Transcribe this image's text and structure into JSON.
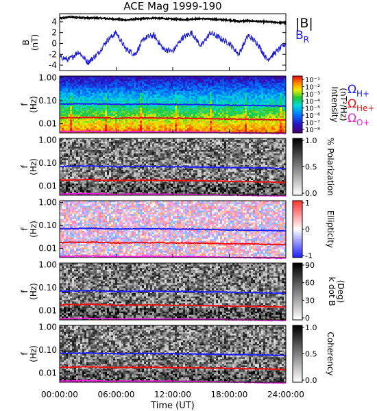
{
  "title": "ACE Mag 1999-190",
  "xaxis": {
    "label": "Time (UT)",
    "ticks": [
      "00:00:00",
      "06:00:00",
      "12:00:00",
      "18:00:00",
      "24:00:00"
    ]
  },
  "colors": {
    "B_total": "#000000",
    "B_R": "#1a1ad8",
    "H_plus": "#2020ff",
    "He_plus": "#ee1111",
    "O_plus": "#ee22dd"
  },
  "chart_data": [
    {
      "type": "line",
      "panel": "magnetic-field",
      "ylabel": "B (nT)",
      "ylabel_line1": "B",
      "ylabel_line2": "(nT)",
      "yticks": [
        "4",
        "2",
        "0",
        "-2",
        "-4"
      ],
      "ylim": [
        -5,
        5.5
      ],
      "xlim_hours": [
        0,
        24
      ],
      "series": [
        {
          "name": "|B|",
          "x_hours": [
            0,
            1,
            2,
            3,
            4,
            5,
            6,
            7,
            8,
            9,
            10,
            11,
            12,
            13,
            14,
            15,
            16,
            17,
            18,
            19,
            20,
            21,
            22,
            23,
            24
          ],
          "values": [
            4.6,
            4.9,
            4.8,
            4.7,
            4.7,
            4.6,
            4.5,
            4.3,
            4.5,
            4.6,
            4.7,
            4.6,
            4.5,
            4.4,
            4.5,
            4.6,
            4.5,
            4.4,
            4.3,
            4.1,
            4.2,
            4.1,
            4.0,
            3.9,
            3.8
          ]
        },
        {
          "name": "B",
          "name_sub": "R",
          "x_hours": [
            0,
            1,
            2,
            3,
            4,
            5,
            6,
            7,
            8,
            9,
            10,
            11,
            12,
            13,
            14,
            15,
            16,
            17,
            18,
            19,
            20,
            21,
            22,
            23,
            24
          ],
          "values": [
            -2.5,
            -3.0,
            -1.5,
            -3.5,
            -2.0,
            0.5,
            2.0,
            -1.0,
            -2.0,
            1.0,
            1.5,
            -1.0,
            -1.5,
            1.0,
            2.0,
            -0.5,
            2.0,
            1.0,
            0.0,
            -2.0,
            1.5,
            0.0,
            -3.0,
            -1.5,
            0.0
          ]
        }
      ]
    },
    {
      "type": "heatmap",
      "panel": "power-spectrum",
      "ylabel_line1": "f",
      "ylabel_line2": "(Hz)",
      "yticks": [
        "1.00",
        "0.10",
        "0.01"
      ],
      "ylim_hz": [
        0.004,
        1.2
      ],
      "colorbar": {
        "label_line1": "Intensity",
        "label_line2": "(nT²/Hz)",
        "ticks": [
          "10⁻¹",
          "10⁻²",
          "10⁻³",
          "10⁻⁴",
          "10⁻⁵",
          "10⁻⁶",
          "10⁻⁷",
          "10⁻⁸"
        ],
        "range_log10": [
          -8.5,
          -0.5
        ]
      },
      "gyro_legend": [
        {
          "symbol": "Ω",
          "sub": "H+",
          "color": "#2020ff"
        },
        {
          "symbol": "Ω",
          "sub": "He+",
          "color": "#ee1111"
        },
        {
          "symbol": "Ω",
          "sub": "O+",
          "color": "#ee22dd"
        }
      ]
    },
    {
      "type": "heatmap",
      "panel": "polarization",
      "ylabel_line1": "f",
      "ylabel_line2": "(Hz)",
      "yticks": [
        "1.00",
        "0.10",
        "0.01"
      ],
      "colorbar": {
        "label": "% Polarization",
        "ticks": [
          "1.0",
          "0.5",
          "0.0"
        ],
        "range": [
          0,
          1
        ]
      }
    },
    {
      "type": "heatmap",
      "panel": "ellipticity",
      "ylabel_line1": "f",
      "ylabel_line2": "(Hz)",
      "yticks": [
        "1.00",
        "0.10",
        "0.01"
      ],
      "colorbar": {
        "label": "Ellipticity",
        "ticks": [
          "1",
          "0",
          "-1"
        ],
        "range": [
          -1,
          1
        ]
      }
    },
    {
      "type": "heatmap",
      "panel": "wave-normal-angle",
      "ylabel_line1": "f",
      "ylabel_line2": "(Hz)",
      "yticks": [
        "1.00",
        "0.10",
        "0.01"
      ],
      "colorbar": {
        "label_line1": "k dot B",
        "label_line2": "(Deg)",
        "ticks": [
          "90",
          "60",
          "30",
          "0"
        ],
        "range": [
          0,
          90
        ]
      }
    },
    {
      "type": "heatmap",
      "panel": "coherency",
      "ylabel_line1": "f",
      "ylabel_line2": "(Hz)",
      "yticks": [
        "1.00",
        "0.10",
        "0.01"
      ],
      "colorbar": {
        "label": "Coherency",
        "ticks": [
          "1.0",
          "0.5",
          "0.0"
        ],
        "range": [
          0,
          1
        ]
      }
    }
  ],
  "gyrofrequency_lines_hz": {
    "x_hours": [
      0,
      3,
      6,
      9,
      12,
      15,
      18,
      21,
      24
    ],
    "H_plus": [
      0.072,
      0.075,
      0.07,
      0.072,
      0.07,
      0.068,
      0.064,
      0.062,
      0.058
    ],
    "He_plus": [
      0.018,
      0.019,
      0.0175,
      0.018,
      0.0175,
      0.017,
      0.016,
      0.0155,
      0.0145
    ],
    "O_plus": [
      0.0045,
      0.0047,
      0.0044,
      0.0045,
      0.0044,
      0.0043,
      0.0041,
      0.0039,
      0.0037
    ]
  }
}
